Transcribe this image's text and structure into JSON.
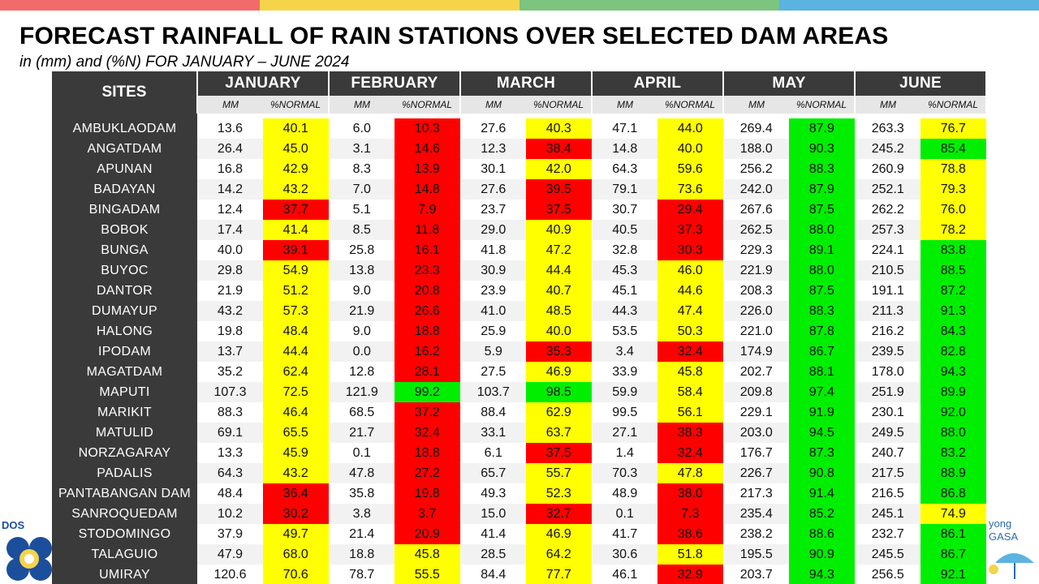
{
  "header": {
    "title": "FORECAST RAINFALL OF RAIN STATIONS OVER SELECTED DAM AREAS",
    "subtitle": "in (mm) and (%N) FOR JANUARY – JUNE 2024"
  },
  "colors": {
    "topbar": [
      "#f26b6b",
      "#f5d44a",
      "#7cc47f",
      "#5bb3e0"
    ],
    "yellow": "#ffff00",
    "red": "#ff0000",
    "green": "#00ee00",
    "site_bg": "#3a3a3a"
  },
  "logos": {
    "left_text": "DOS",
    "right_text": "yong\nGASA"
  },
  "table": {
    "sites_header": "SITES",
    "sub_mm": "MM",
    "sub_normal": "%NORMAL",
    "months": [
      "JANUARY",
      "FEBRUARY",
      "MARCH",
      "APRIL",
      "MAY",
      "JUNE"
    ],
    "rows": [
      {
        "site": "AMBUKLAODAM",
        "v": [
          [
            "13.6",
            "40.1",
            "y"
          ],
          [
            "6.0",
            "10.3",
            "r"
          ],
          [
            "27.6",
            "40.3",
            "y"
          ],
          [
            "47.1",
            "44.0",
            "y"
          ],
          [
            "269.4",
            "87.9",
            "g"
          ],
          [
            "263.3",
            "76.7",
            "y"
          ]
        ]
      },
      {
        "site": "ANGATDAM",
        "v": [
          [
            "26.4",
            "45.0",
            "y"
          ],
          [
            "3.1",
            "14.6",
            "r"
          ],
          [
            "12.3",
            "38.4",
            "r"
          ],
          [
            "14.8",
            "40.0",
            "y"
          ],
          [
            "188.0",
            "90.3",
            "g"
          ],
          [
            "245.2",
            "85.4",
            "g"
          ]
        ]
      },
      {
        "site": "APUNAN",
        "v": [
          [
            "16.8",
            "42.9",
            "y"
          ],
          [
            "8.3",
            "13.9",
            "r"
          ],
          [
            "30.1",
            "42.0",
            "y"
          ],
          [
            "64.3",
            "59.6",
            "y"
          ],
          [
            "256.2",
            "88.3",
            "g"
          ],
          [
            "260.9",
            "78.8",
            "y"
          ]
        ]
      },
      {
        "site": "BADAYAN",
        "v": [
          [
            "14.2",
            "43.2",
            "y"
          ],
          [
            "7.0",
            "14.8",
            "r"
          ],
          [
            "27.6",
            "39.5",
            "r"
          ],
          [
            "79.1",
            "73.6",
            "y"
          ],
          [
            "242.0",
            "87.9",
            "g"
          ],
          [
            "252.1",
            "79.3",
            "y"
          ]
        ]
      },
      {
        "site": "BINGADAM",
        "v": [
          [
            "12.4",
            "37.7",
            "r"
          ],
          [
            "5.1",
            "7.9",
            "r"
          ],
          [
            "23.7",
            "37.5",
            "r"
          ],
          [
            "30.7",
            "29.4",
            "r"
          ],
          [
            "267.6",
            "87.5",
            "g"
          ],
          [
            "262.2",
            "76.0",
            "y"
          ]
        ]
      },
      {
        "site": "BOBOK",
        "v": [
          [
            "17.4",
            "41.4",
            "y"
          ],
          [
            "8.5",
            "11.8",
            "r"
          ],
          [
            "29.0",
            "40.9",
            "y"
          ],
          [
            "40.5",
            "37.3",
            "r"
          ],
          [
            "262.5",
            "88.0",
            "g"
          ],
          [
            "257.3",
            "78.2",
            "y"
          ]
        ]
      },
      {
        "site": "BUNGA",
        "v": [
          [
            "40.0",
            "39.1",
            "r"
          ],
          [
            "25.8",
            "16.1",
            "r"
          ],
          [
            "41.8",
            "47.2",
            "y"
          ],
          [
            "32.8",
            "30.3",
            "r"
          ],
          [
            "229.3",
            "89.1",
            "g"
          ],
          [
            "224.1",
            "83.8",
            "g"
          ]
        ]
      },
      {
        "site": "BUYOC",
        "v": [
          [
            "29.8",
            "54.9",
            "y"
          ],
          [
            "13.8",
            "23.3",
            "r"
          ],
          [
            "30.9",
            "44.4",
            "y"
          ],
          [
            "45.3",
            "46.0",
            "y"
          ],
          [
            "221.9",
            "88.0",
            "g"
          ],
          [
            "210.5",
            "88.5",
            "g"
          ]
        ]
      },
      {
        "site": "DANTOR",
        "v": [
          [
            "21.9",
            "51.2",
            "y"
          ],
          [
            "9.0",
            "20.8",
            "r"
          ],
          [
            "23.9",
            "40.7",
            "y"
          ],
          [
            "45.1",
            "44.6",
            "y"
          ],
          [
            "208.3",
            "87.5",
            "g"
          ],
          [
            "191.1",
            "87.2",
            "g"
          ]
        ]
      },
      {
        "site": "DUMAYUP",
        "v": [
          [
            "43.2",
            "57.3",
            "y"
          ],
          [
            "21.9",
            "26.6",
            "r"
          ],
          [
            "41.0",
            "48.5",
            "y"
          ],
          [
            "44.3",
            "47.4",
            "y"
          ],
          [
            "226.0",
            "88.3",
            "g"
          ],
          [
            "211.3",
            "91.3",
            "g"
          ]
        ]
      },
      {
        "site": "HALONG",
        "v": [
          [
            "19.8",
            "48.4",
            "y"
          ],
          [
            "9.0",
            "18.8",
            "r"
          ],
          [
            "25.9",
            "40.0",
            "y"
          ],
          [
            "53.5",
            "50.3",
            "y"
          ],
          [
            "221.0",
            "87.8",
            "g"
          ],
          [
            "216.2",
            "84.3",
            "g"
          ]
        ]
      },
      {
        "site": "IPODAM",
        "v": [
          [
            "13.7",
            "44.4",
            "y"
          ],
          [
            "0.0",
            "16.2",
            "r"
          ],
          [
            "5.9",
            "35.3",
            "r"
          ],
          [
            "3.4",
            "32.4",
            "r"
          ],
          [
            "174.9",
            "86.7",
            "g"
          ],
          [
            "239.5",
            "82.8",
            "g"
          ]
        ]
      },
      {
        "site": "MAGATDAM",
        "v": [
          [
            "35.2",
            "62.4",
            "y"
          ],
          [
            "12.8",
            "28.1",
            "r"
          ],
          [
            "27.5",
            "46.9",
            "y"
          ],
          [
            "33.9",
            "45.8",
            "y"
          ],
          [
            "202.7",
            "88.1",
            "g"
          ],
          [
            "178.0",
            "94.3",
            "g"
          ]
        ]
      },
      {
        "site": "MAPUTI",
        "v": [
          [
            "107.3",
            "72.5",
            "y"
          ],
          [
            "121.9",
            "99.2",
            "g"
          ],
          [
            "103.7",
            "98.5",
            "g"
          ],
          [
            "59.9",
            "58.4",
            "y"
          ],
          [
            "209.8",
            "97.4",
            "g"
          ],
          [
            "251.9",
            "89.9",
            "g"
          ]
        ]
      },
      {
        "site": "MARIKIT",
        "v": [
          [
            "88.3",
            "46.4",
            "y"
          ],
          [
            "68.5",
            "37.2",
            "r"
          ],
          [
            "88.4",
            "62.9",
            "y"
          ],
          [
            "99.5",
            "56.1",
            "y"
          ],
          [
            "229.1",
            "91.9",
            "g"
          ],
          [
            "230.1",
            "92.0",
            "g"
          ]
        ]
      },
      {
        "site": "MATULID",
        "v": [
          [
            "69.1",
            "65.5",
            "y"
          ],
          [
            "21.7",
            "32.4",
            "r"
          ],
          [
            "33.1",
            "63.7",
            "y"
          ],
          [
            "27.1",
            "38.3",
            "r"
          ],
          [
            "203.0",
            "94.5",
            "g"
          ],
          [
            "249.5",
            "88.0",
            "g"
          ]
        ]
      },
      {
        "site": "NORZAGARAY",
        "v": [
          [
            "13.3",
            "45.9",
            "y"
          ],
          [
            "0.1",
            "18.8",
            "r"
          ],
          [
            "6.1",
            "37.5",
            "r"
          ],
          [
            "1.4",
            "32.4",
            "r"
          ],
          [
            "176.7",
            "87.3",
            "g"
          ],
          [
            "240.7",
            "83.2",
            "g"
          ]
        ]
      },
      {
        "site": "PADALIS",
        "v": [
          [
            "64.3",
            "43.2",
            "y"
          ],
          [
            "47.8",
            "27.2",
            "r"
          ],
          [
            "65.7",
            "55.7",
            "y"
          ],
          [
            "70.3",
            "47.8",
            "y"
          ],
          [
            "226.7",
            "90.8",
            "g"
          ],
          [
            "217.5",
            "88.9",
            "g"
          ]
        ]
      },
      {
        "site": "PANTABANGAN DAM",
        "v": [
          [
            "48.4",
            "36.4",
            "r"
          ],
          [
            "35.8",
            "19.8",
            "r"
          ],
          [
            "49.3",
            "52.3",
            "y"
          ],
          [
            "48.9",
            "38.0",
            "r"
          ],
          [
            "217.3",
            "91.4",
            "g"
          ],
          [
            "216.5",
            "86.8",
            "g"
          ]
        ]
      },
      {
        "site": "SANROQUEDAM",
        "v": [
          [
            "10.2",
            "30.2",
            "r"
          ],
          [
            "3.8",
            "3.7",
            "r"
          ],
          [
            "15.0",
            "32.7",
            "r"
          ],
          [
            "0.1",
            "7.3",
            "r"
          ],
          [
            "235.4",
            "85.2",
            "g"
          ],
          [
            "245.1",
            "74.9",
            "y"
          ]
        ]
      },
      {
        "site": "STODOMINGO",
        "v": [
          [
            "37.9",
            "49.7",
            "y"
          ],
          [
            "21.4",
            "20.9",
            "r"
          ],
          [
            "41.4",
            "46.9",
            "y"
          ],
          [
            "41.7",
            "38.6",
            "r"
          ],
          [
            "238.2",
            "88.6",
            "g"
          ],
          [
            "232.7",
            "86.1",
            "g"
          ]
        ]
      },
      {
        "site": "TALAGUIO",
        "v": [
          [
            "47.9",
            "68.0",
            "y"
          ],
          [
            "18.8",
            "45.8",
            "y"
          ],
          [
            "28.5",
            "64.2",
            "y"
          ],
          [
            "30.6",
            "51.8",
            "y"
          ],
          [
            "195.5",
            "90.9",
            "g"
          ],
          [
            "245.5",
            "86.7",
            "g"
          ]
        ]
      },
      {
        "site": "UMIRAY",
        "v": [
          [
            "120.6",
            "70.6",
            "y"
          ],
          [
            "78.7",
            "55.5",
            "y"
          ],
          [
            "84.4",
            "77.7",
            "y"
          ],
          [
            "46.1",
            "32.9",
            "r"
          ],
          [
            "203.7",
            "94.3",
            "g"
          ],
          [
            "256.5",
            "92.1",
            "g"
          ]
        ]
      }
    ]
  }
}
